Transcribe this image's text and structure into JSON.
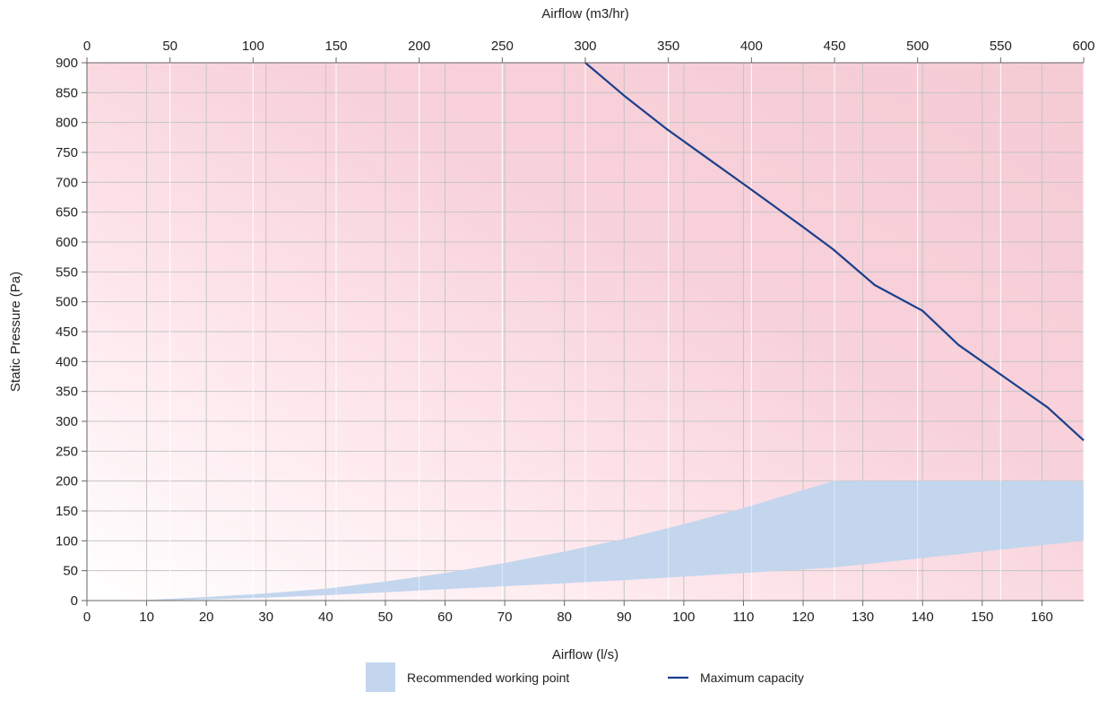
{
  "chart_data": {
    "type": "area",
    "xlabel_bottom": "Airflow (l/s)",
    "xlabel_top": "Airflow (m3/hr)",
    "ylabel": "Static Pressure (Pa)",
    "xlim_ls": [
      0,
      167
    ],
    "xlim_m3hr": [
      0,
      600
    ],
    "ylim": [
      0,
      900
    ],
    "x_ticks_bottom": [
      0,
      10,
      20,
      30,
      40,
      50,
      60,
      70,
      80,
      90,
      100,
      110,
      120,
      130,
      140,
      150,
      160
    ],
    "x_ticks_top": [
      0,
      50,
      100,
      150,
      200,
      250,
      300,
      350,
      400,
      450,
      500,
      550,
      600
    ],
    "y_ticks": [
      0,
      50,
      100,
      150,
      200,
      250,
      300,
      350,
      400,
      450,
      500,
      550,
      600,
      650,
      700,
      750,
      800,
      850,
      900
    ],
    "grid": true,
    "background": "red-to-white gradient (pink region, fading to white toward the origin)",
    "legend_position": "bottom-center",
    "series": [
      {
        "name": "Recommended working point",
        "type": "band",
        "color": "#c3d6ee",
        "x": [
          10,
          20,
          30,
          40,
          50,
          60,
          70,
          80,
          90,
          100,
          110,
          120,
          125,
          167
        ],
        "upper": [
          1,
          6,
          12,
          20,
          32,
          46,
          63,
          82,
          103,
          128,
          155,
          185,
          200,
          200
        ],
        "lower": [
          0,
          2,
          5,
          9,
          14,
          19,
          24,
          29,
          34,
          40,
          46,
          52,
          55,
          100
        ]
      },
      {
        "name": "Maximum capacity",
        "type": "line",
        "color": "#1c3f8c",
        "x": [
          83.5,
          90,
          97,
          104,
          111,
          120,
          125,
          132,
          140,
          146,
          161,
          167
        ],
        "y": [
          900,
          845,
          790,
          740,
          690,
          625,
          588,
          528,
          485,
          428,
          323,
          268
        ]
      }
    ]
  }
}
